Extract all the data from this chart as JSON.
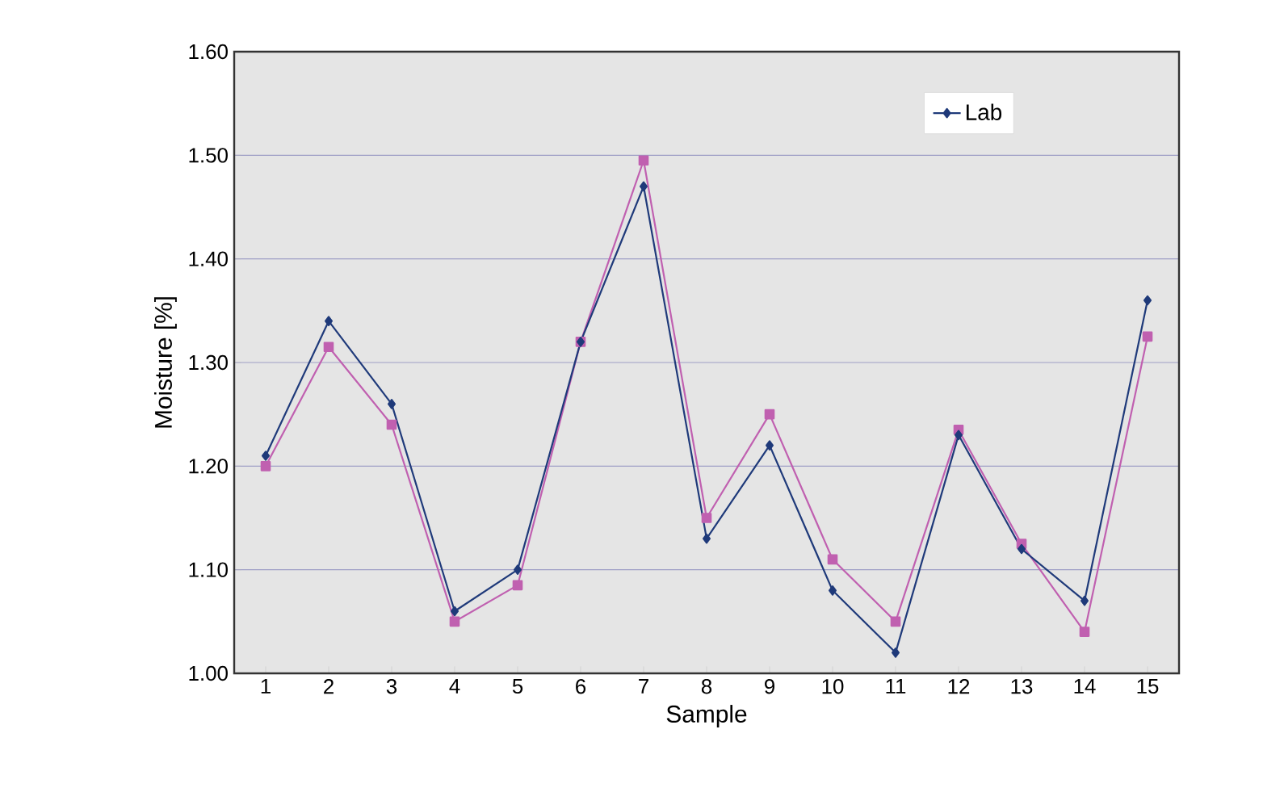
{
  "chart_data": {
    "type": "line",
    "xlabel": "Sample",
    "ylabel": "Moisture [%]",
    "categories": [
      "1",
      "2",
      "3",
      "4",
      "5",
      "6",
      "7",
      "8",
      "9",
      "10",
      "11",
      "12",
      "13",
      "14",
      "15"
    ],
    "series": [
      {
        "name": "Lab",
        "color": "#1f3a7a",
        "marker": "diamond",
        "values": [
          1.21,
          1.34,
          1.26,
          1.06,
          1.1,
          1.32,
          1.47,
          1.13,
          1.22,
          1.08,
          1.02,
          1.23,
          1.12,
          1.07,
          1.36
        ]
      },
      {
        "color": "#c060b0",
        "marker": "square",
        "values": [
          1.2,
          1.315,
          1.24,
          1.05,
          1.085,
          1.32,
          1.495,
          1.15,
          1.25,
          1.11,
          1.05,
          1.235,
          1.125,
          1.04,
          1.325
        ]
      }
    ],
    "ylim": [
      1.0,
      1.6
    ],
    "yticks": [
      {
        "value": 1.0,
        "label": "1.00"
      },
      {
        "value": 1.1,
        "label": "1.10"
      },
      {
        "value": 1.2,
        "label": "1.20"
      },
      {
        "value": 1.3,
        "label": "1.30"
      },
      {
        "value": 1.4,
        "label": "1.40"
      },
      {
        "value": 1.5,
        "label": "1.50"
      },
      {
        "value": 1.6,
        "label": "1.60"
      }
    ],
    "grid": "y",
    "legend": "top right",
    "line_style": "solid"
  }
}
